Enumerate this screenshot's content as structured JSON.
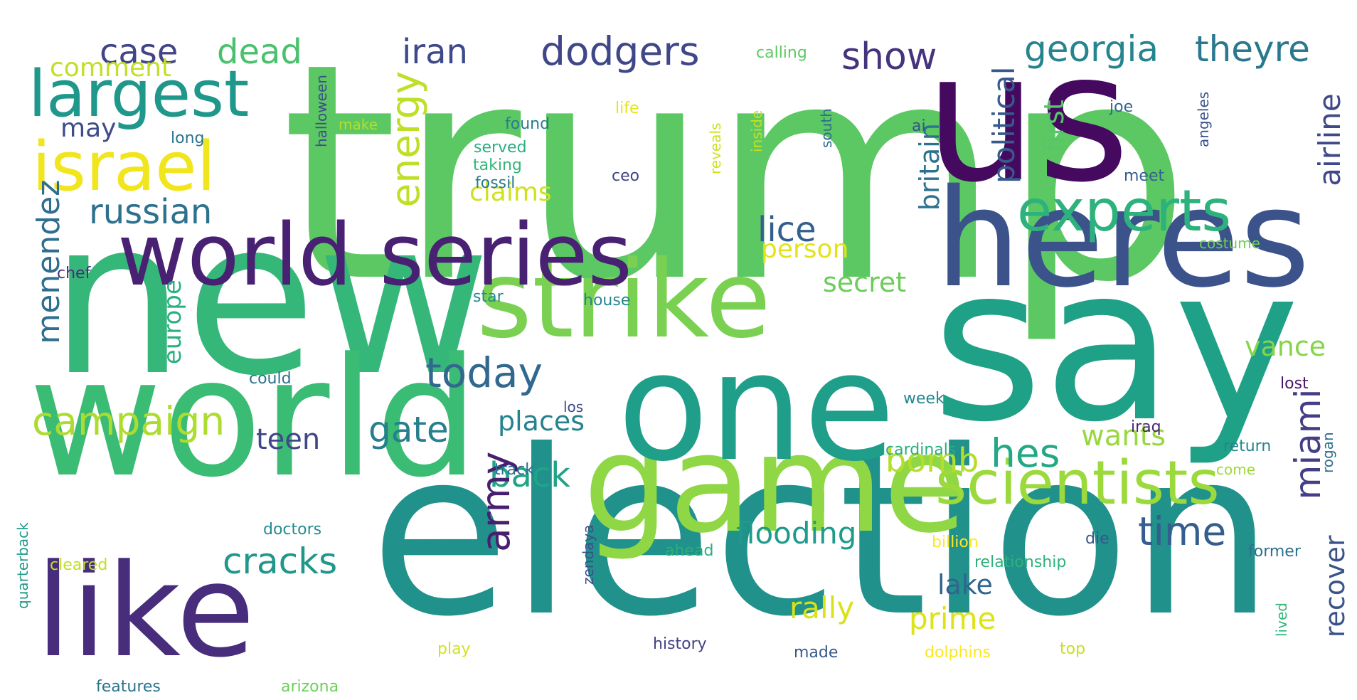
{
  "words": [
    {
      "text": "trump",
      "color": "#5cc863"
    },
    {
      "text": "us",
      "color": "#450a60"
    },
    {
      "text": "new",
      "color": "#35b779"
    },
    {
      "text": "say",
      "color": "#1fa187"
    },
    {
      "text": "election",
      "color": "#21918c"
    },
    {
      "text": "heres",
      "color": "#3b528b"
    },
    {
      "text": "world",
      "color": "#3bbc74"
    },
    {
      "text": "game",
      "color": "#8fd744"
    },
    {
      "text": "one",
      "color": "#1f9e89"
    },
    {
      "text": "strike",
      "color": "#7ad151"
    },
    {
      "text": "like",
      "color": "#472d7b"
    },
    {
      "text": "world series",
      "color": "#482173"
    },
    {
      "text": "israel",
      "color": "#f1e51d"
    },
    {
      "text": "largest",
      "color": "#1f988b"
    },
    {
      "text": "scientists",
      "color": "#9bd93c"
    },
    {
      "text": "experts",
      "color": "#2db27d"
    },
    {
      "text": "dodgers",
      "color": "#3f4788"
    },
    {
      "text": "georgia",
      "color": "#25848e"
    },
    {
      "text": "theyre",
      "color": "#2a788e"
    },
    {
      "text": "case",
      "color": "#414487"
    },
    {
      "text": "dead",
      "color": "#4ac16d"
    },
    {
      "text": "iran",
      "color": "#3e4989"
    },
    {
      "text": "show",
      "color": "#46337e"
    },
    {
      "text": "comment",
      "color": "#c2df23"
    },
    {
      "text": "may",
      "color": "#3e4c8a"
    },
    {
      "text": "energy",
      "color": "#bddf26"
    },
    {
      "text": "campaign",
      "color": "#addc30"
    },
    {
      "text": "russian",
      "color": "#2c718e"
    },
    {
      "text": "claims",
      "color": "#d0e11c"
    },
    {
      "text": "today",
      "color": "#31688e"
    },
    {
      "text": "lice",
      "color": "#355f8d"
    },
    {
      "text": "person",
      "color": "#e2e418"
    },
    {
      "text": "secret",
      "color": "#6ccd5a"
    },
    {
      "text": "political",
      "color": "#38598c"
    },
    {
      "text": "first",
      "color": "#56c667"
    },
    {
      "text": "britain",
      "color": "#2c728e"
    },
    {
      "text": "airline",
      "color": "#3f4889"
    },
    {
      "text": "miami",
      "color": "#433e85"
    },
    {
      "text": "menendez",
      "color": "#2e6e8e"
    },
    {
      "text": "europe",
      "color": "#2ab07f"
    },
    {
      "text": "gate",
      "color": "#277f8e"
    },
    {
      "text": "teen",
      "color": "#404688"
    },
    {
      "text": "places",
      "color": "#26828e"
    },
    {
      "text": "wants",
      "color": "#98d83e"
    },
    {
      "text": "hes",
      "color": "#22a884"
    },
    {
      "text": "bomb",
      "color": "#b5de2b"
    },
    {
      "text": "back",
      "color": "#20a386"
    },
    {
      "text": "time",
      "color": "#345e8d"
    },
    {
      "text": "vance",
      "color": "#85d54a"
    },
    {
      "text": "cracks",
      "color": "#1f978b"
    },
    {
      "text": "army",
      "color": "#481f70"
    },
    {
      "text": "flooding",
      "color": "#1e9b8a"
    },
    {
      "text": "recover",
      "color": "#3a538b"
    },
    {
      "text": "lake",
      "color": "#32658e"
    },
    {
      "text": "prime",
      "color": "#dde318"
    },
    {
      "text": "rally",
      "color": "#d8e219"
    },
    {
      "text": "calling",
      "color": "#5ec962"
    },
    {
      "text": "life",
      "color": "#e5e419"
    },
    {
      "text": "make",
      "color": "#b8de29"
    },
    {
      "text": "long",
      "color": "#2c738e"
    },
    {
      "text": "found",
      "color": "#287c8e"
    },
    {
      "text": "served",
      "color": "#29af7f"
    },
    {
      "text": "taking",
      "color": "#34b679"
    },
    {
      "text": "fossil",
      "color": "#297b8e"
    },
    {
      "text": "ceo",
      "color": "#414487"
    },
    {
      "text": "halloween",
      "color": "#3d4e8a"
    },
    {
      "text": "inside",
      "color": "#c5e021"
    },
    {
      "text": "reveals",
      "color": "#cde11d"
    },
    {
      "text": "south",
      "color": "#2e6d8e"
    },
    {
      "text": "ai",
      "color": "#3b518b"
    },
    {
      "text": "joe",
      "color": "#31678e"
    },
    {
      "text": "angeles",
      "color": "#3a538b"
    },
    {
      "text": "meet",
      "color": "#35608d"
    },
    {
      "text": "costume",
      "color": "#6ece58"
    },
    {
      "text": "chef",
      "color": "#472c7a"
    },
    {
      "text": "star",
      "color": "#238a8d"
    },
    {
      "text": "house",
      "color": "#24878e"
    },
    {
      "text": "could",
      "color": "#2c718e"
    },
    {
      "text": "los",
      "color": "#3e4989"
    },
    {
      "text": "week",
      "color": "#24868e"
    },
    {
      "text": "lost",
      "color": "#481769"
    },
    {
      "text": "iraq",
      "color": "#472878"
    },
    {
      "text": "cardinals",
      "color": "#27ad81"
    },
    {
      "text": "return",
      "color": "#25848e"
    },
    {
      "text": "rogan",
      "color": "#2f6c8e"
    },
    {
      "text": "track",
      "color": "#2e6e8e"
    },
    {
      "text": "come",
      "color": "#9dd93b"
    },
    {
      "text": "doctors",
      "color": "#228c8d"
    },
    {
      "text": "quarterback",
      "color": "#1f9a8a"
    },
    {
      "text": "cleared",
      "color": "#c0df25"
    },
    {
      "text": "zendaya",
      "color": "#3c4f8a"
    },
    {
      "text": "ahead",
      "color": "#29af7f"
    },
    {
      "text": "billion",
      "color": "#fde725"
    },
    {
      "text": "die",
      "color": "#39568c"
    },
    {
      "text": "relationship",
      "color": "#2db27d"
    },
    {
      "text": "former",
      "color": "#2d708e"
    },
    {
      "text": "history",
      "color": "#414287"
    },
    {
      "text": "play",
      "color": "#d2e21b"
    },
    {
      "text": "made",
      "color": "#375a8c"
    },
    {
      "text": "dolphins",
      "color": "#fbe723"
    },
    {
      "text": "top",
      "color": "#c8e020"
    },
    {
      "text": "lived",
      "color": "#33b67a"
    },
    {
      "text": "features",
      "color": "#2c738e"
    },
    {
      "text": "arizona",
      "color": "#6ccd5a"
    }
  ]
}
